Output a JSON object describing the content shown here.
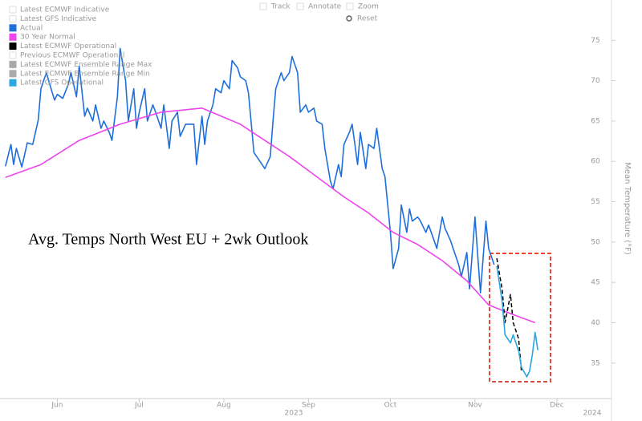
{
  "chart_data": {
    "type": "line",
    "annotation": "Avg. Temps North West EU + 2wk Outlook",
    "y_label": "Mean Temperature (°F)",
    "toolbar": [
      "Track",
      "Annotate",
      "Zoom",
      "Reset"
    ],
    "year_labels": [
      "2023",
      "2024"
    ],
    "xlim": [
      131,
      355
    ],
    "xticks": [
      {
        "value": 152,
        "label": "Jun"
      },
      {
        "value": 182,
        "label": "Jul"
      },
      {
        "value": 213,
        "label": "Aug"
      },
      {
        "value": 244,
        "label": "Sep"
      },
      {
        "value": 274,
        "label": "Oct"
      },
      {
        "value": 305,
        "label": "Nov"
      },
      {
        "value": 335,
        "label": "Dec"
      }
    ],
    "ylim": [
      31,
      80
    ],
    "yticks": [
      35,
      40,
      45,
      50,
      55,
      60,
      65,
      70,
      75
    ],
    "series": [
      {
        "name": "Latest ECMWF Indicative",
        "color": "#ffffff"
      },
      {
        "name": "Latest GFS Indicative",
        "color": "#ffffff"
      },
      {
        "name": "Actual",
        "color": "#1f6fdb",
        "x": [
          133,
          135,
          136,
          137,
          139,
          141,
          143,
          145,
          146,
          148,
          149,
          151,
          152,
          154,
          156,
          157,
          159,
          160,
          162,
          163,
          165,
          166,
          168,
          169,
          171,
          172,
          174,
          175,
          177,
          178,
          180,
          181,
          182,
          184,
          185,
          187,
          188,
          190,
          191,
          193,
          194,
          196,
          197,
          199,
          202,
          203,
          205,
          206,
          207,
          209,
          210,
          212,
          213,
          215,
          216,
          218,
          219,
          221,
          222,
          224,
          225,
          227,
          228,
          230,
          231,
          232,
          234,
          235,
          237,
          238,
          240,
          241,
          243,
          244,
          246,
          247,
          249,
          250,
          252,
          253,
          255,
          256,
          257,
          259,
          260,
          262,
          263,
          265,
          266,
          268,
          269,
          271,
          272,
          274,
          275,
          277,
          278,
          280,
          281,
          282,
          284,
          285,
          287,
          288,
          290,
          291,
          293,
          294,
          296,
          297,
          299,
          300,
          302,
          303,
          305,
          306,
          307,
          309,
          310,
          312
        ],
        "values": [
          59.4,
          62.1,
          59.6,
          61.6,
          59.3,
          62.3,
          62.1,
          65.1,
          69,
          71,
          69.8,
          67.6,
          68.3,
          67.8,
          69.5,
          71,
          68,
          71.8,
          65.6,
          66.6,
          65,
          67,
          64.1,
          65,
          63.6,
          62.6,
          68,
          74,
          70,
          65,
          69,
          64.1,
          66.1,
          69,
          65,
          67,
          66.1,
          64.1,
          67,
          61.6,
          65,
          66.1,
          63.1,
          64.6,
          64.6,
          59.6,
          65.6,
          62.1,
          65,
          67,
          69,
          68.5,
          70,
          69,
          72.5,
          71.6,
          70.5,
          70,
          68.5,
          61.1,
          60.6,
          59.6,
          59.1,
          60.6,
          65,
          69,
          71,
          70,
          71,
          73,
          71,
          66.1,
          67,
          66.1,
          66.6,
          65,
          64.6,
          61.6,
          57.6,
          56.6,
          59.6,
          58.1,
          62.1,
          63.6,
          64.6,
          59.6,
          63.6,
          59.1,
          62.1,
          61.6,
          64.1,
          59.1,
          58.1,
          51.2,
          46.7,
          49.2,
          54.6,
          51.2,
          54.1,
          52.6,
          53.1,
          52.6,
          51.2,
          52.1,
          50.2,
          49.2,
          53.1,
          51.7,
          50.2,
          49.2,
          47.2,
          45.7,
          48.7,
          44.2,
          53.1,
          48.3,
          43.7,
          52.6,
          49.2,
          47.2
        ]
      },
      {
        "name": "30 Year Normal",
        "color": "#ee44ee",
        "x": [
          133,
          146,
          160,
          175,
          190,
          205,
          219,
          228,
          237,
          249,
          257,
          266,
          275,
          284,
          293,
          302,
          310,
          319,
          327
        ],
        "values": [
          58,
          59.6,
          62.6,
          64.6,
          66.1,
          66.6,
          64.6,
          62.6,
          60.6,
          57.6,
          55.6,
          53.6,
          51.2,
          49.7,
          47.7,
          45.2,
          42.2,
          41,
          40
        ]
      },
      {
        "name": "Latest ECMWF Operational",
        "color": "#000000",
        "dashed": true,
        "x": [
          313,
          315,
          316,
          318,
          319,
          321,
          322
        ],
        "values": [
          48,
          44,
          40,
          43.5,
          40,
          38,
          34
        ]
      },
      {
        "name": "Previous ECMWF Operational",
        "color": "#ffffff"
      },
      {
        "name": "Latest ECMWF Ensemble Range Max",
        "color": "#aaaaaa"
      },
      {
        "name": "Latest ECMWF Ensemble Range Min",
        "color": "#aaaaaa"
      },
      {
        "name": "Latest GFS Operational",
        "color": "#2aa6e0",
        "x": [
          313,
          315,
          316,
          318,
          319,
          321,
          322,
          324,
          325,
          326,
          327,
          328
        ],
        "values": [
          47,
          42.5,
          38.5,
          37.5,
          38.5,
          36.5,
          34.5,
          33.3,
          34,
          36,
          38.8,
          36.6
        ]
      }
    ]
  }
}
